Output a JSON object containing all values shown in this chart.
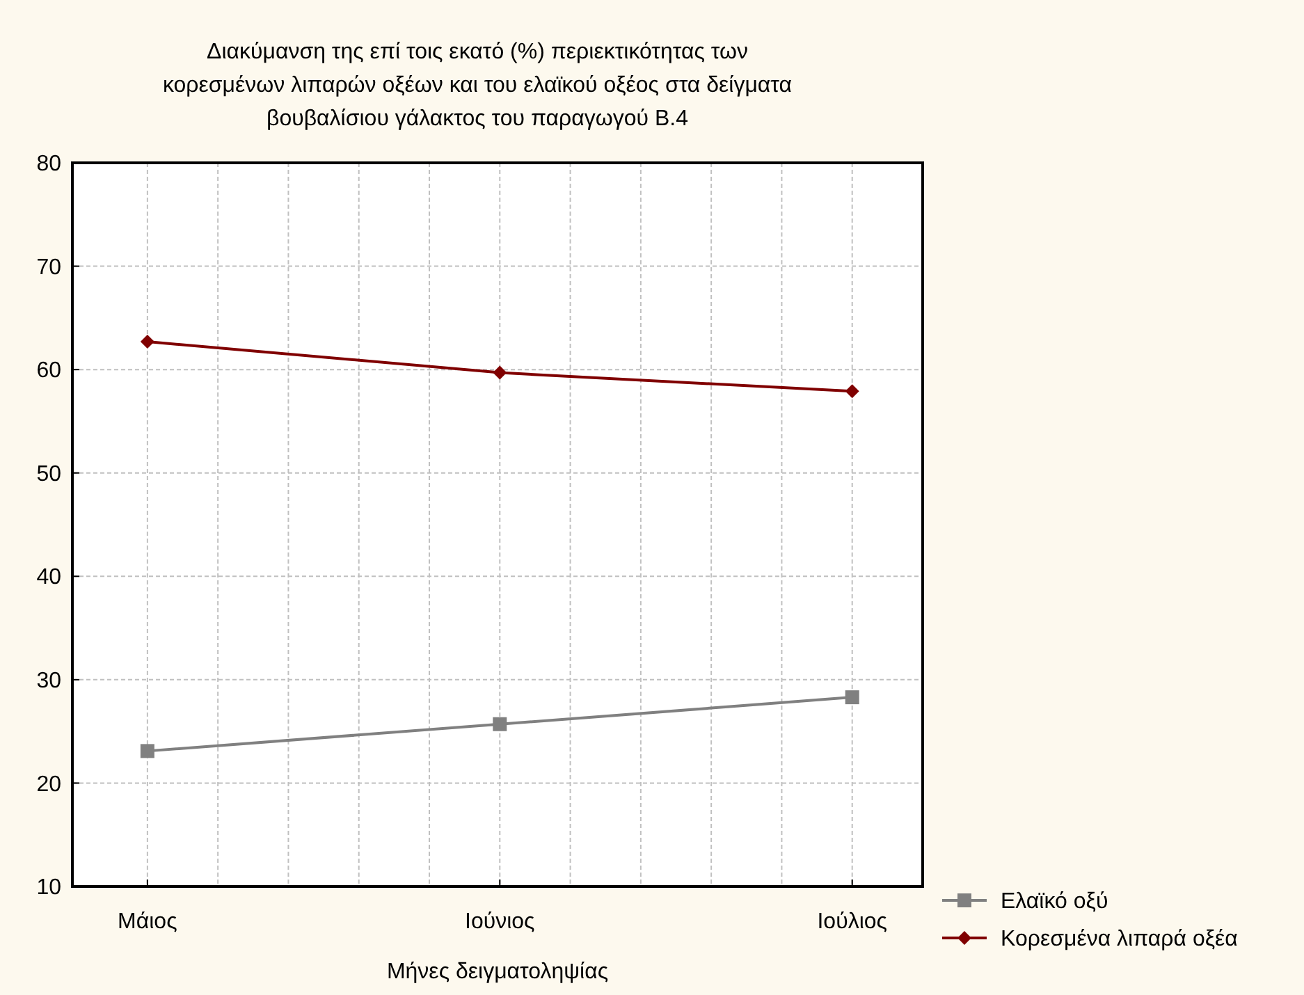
{
  "chart_data": {
    "type": "line",
    "title": "Διακύμανση της επί τοις εκατό (%) περιεκτικότητας των κορεσμένων λιπαρών οξέων και του ελαϊκού οξέος στα δείγματα βουβαλίσιου γάλακτος του παραγωγού Β.4",
    "xlabel": "Μήνες δειγματοληψίας",
    "categories": [
      "Μάιος",
      "Ιούνιος",
      "Ιούλιος"
    ],
    "series": [
      {
        "name": "Ελαϊκό οξύ",
        "color": "#808080",
        "marker": "square",
        "values": [
          23.1,
          25.7,
          28.3
        ]
      },
      {
        "name": "Κορεσμένα λιπαρά οξέα",
        "color": "#800000",
        "marker": "diamond",
        "values": [
          62.7,
          59.7,
          57.9
        ]
      }
    ],
    "ylim": [
      10,
      80
    ],
    "yticks": [
      10,
      20,
      30,
      40,
      50,
      60,
      70,
      80
    ],
    "grid": true,
    "legend": "bottom right",
    "line_style": "solid"
  }
}
